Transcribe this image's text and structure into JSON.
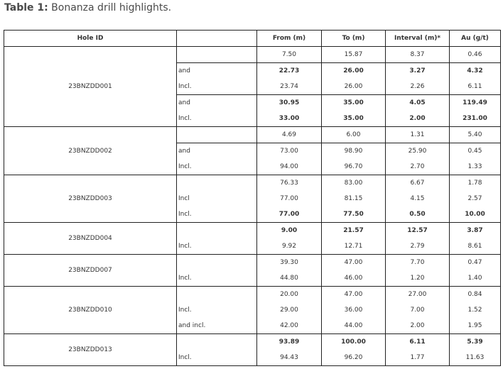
{
  "caption": {
    "label": "Table 1:",
    "text": " Bonanza drill highlights."
  },
  "columns": [
    "Hole ID",
    "",
    "From (m)",
    "To (m)",
    "Interval (m)*",
    "Au (g/t)"
  ],
  "groups": [
    {
      "hole": "23BNZDD001",
      "rows": [
        {
          "q": "",
          "from": "7.50",
          "to": "15.87",
          "interval": "8.37",
          "au": "0.46",
          "bold": false,
          "sep": false
        },
        {
          "q": "and",
          "from": "22.73",
          "to": "26.00",
          "interval": "3.27",
          "au": "4.32",
          "bold": true,
          "sep": true
        },
        {
          "q": "Incl.",
          "from": "23.74",
          "to": "26.00",
          "interval": "2.26",
          "au": "6.11",
          "bold": false,
          "sep": false
        },
        {
          "q": "and",
          "from": "30.95",
          "to": "35.00",
          "interval": "4.05",
          "au": "119.49",
          "bold": true,
          "sep": true
        },
        {
          "q": "Incl.",
          "from": "33.00",
          "to": "35.00",
          "interval": "2.00",
          "au": "231.00",
          "bold": true,
          "sep": false
        }
      ]
    },
    {
      "hole": "23BNZDD002",
      "rows": [
        {
          "q": "",
          "from": "4.69",
          "to": "6.00",
          "interval": "1.31",
          "au": "5.40",
          "bold": false,
          "sep": false
        },
        {
          "q": "and",
          "from": "73.00",
          "to": "98.90",
          "interval": "25.90",
          "au": "0.45",
          "bold": false,
          "sep": true
        },
        {
          "q": "Incl.",
          "from": "94.00",
          "to": "96.70",
          "interval": "2.70",
          "au": "1.33",
          "bold": false,
          "sep": false
        }
      ]
    },
    {
      "hole": "23BNZDD003",
      "rows": [
        {
          "q": "",
          "from": "76.33",
          "to": "83.00",
          "interval": "6.67",
          "au": "1.78",
          "bold": false,
          "sep": false
        },
        {
          "q": "Incl",
          "from": "77.00",
          "to": "81.15",
          "interval": "4.15",
          "au": "2.57",
          "bold": false,
          "sep": false
        },
        {
          "q": "Incl.",
          "from": "77.00",
          "to": "77.50",
          "interval": "0.50",
          "au": "10.00",
          "bold": true,
          "sep": false
        }
      ]
    },
    {
      "hole": "23BNZDD004",
      "rows": [
        {
          "q": "",
          "from": "9.00",
          "to": "21.57",
          "interval": "12.57",
          "au": "3.87",
          "bold": true,
          "sep": false
        },
        {
          "q": "Incl.",
          "from": "9.92",
          "to": "12.71",
          "interval": "2.79",
          "au": "8.61",
          "bold": false,
          "sep": false
        }
      ]
    },
    {
      "hole": "23BNZDD007",
      "rows": [
        {
          "q": "",
          "from": "39.30",
          "to": "47.00",
          "interval": "7.70",
          "au": "0.47",
          "bold": false,
          "sep": false
        },
        {
          "q": "Incl.",
          "from": "44.80",
          "to": "46.00",
          "interval": "1.20",
          "au": "1.40",
          "bold": false,
          "sep": false
        }
      ]
    },
    {
      "hole": "23BNZDD010",
      "rows": [
        {
          "q": "",
          "from": "20.00",
          "to": "47.00",
          "interval": "27.00",
          "au": "0.84",
          "bold": false,
          "sep": false
        },
        {
          "q": "Incl.",
          "from": "29.00",
          "to": "36.00",
          "interval": "7.00",
          "au": "1.52",
          "bold": false,
          "sep": false
        },
        {
          "q": "and incl.",
          "from": "42.00",
          "to": "44.00",
          "interval": "2.00",
          "au": "1.95",
          "bold": false,
          "sep": false
        }
      ]
    },
    {
      "hole": "23BNZDD013",
      "rows": [
        {
          "q": "",
          "from": "93.89",
          "to": "100.00",
          "interval": "6.11",
          "au": "5.39",
          "bold": true,
          "sep": false
        },
        {
          "q": "Incl.",
          "from": "94.43",
          "to": "96.20",
          "interval": "1.77",
          "au": "11.63",
          "bold": false,
          "sep": false
        }
      ]
    }
  ]
}
